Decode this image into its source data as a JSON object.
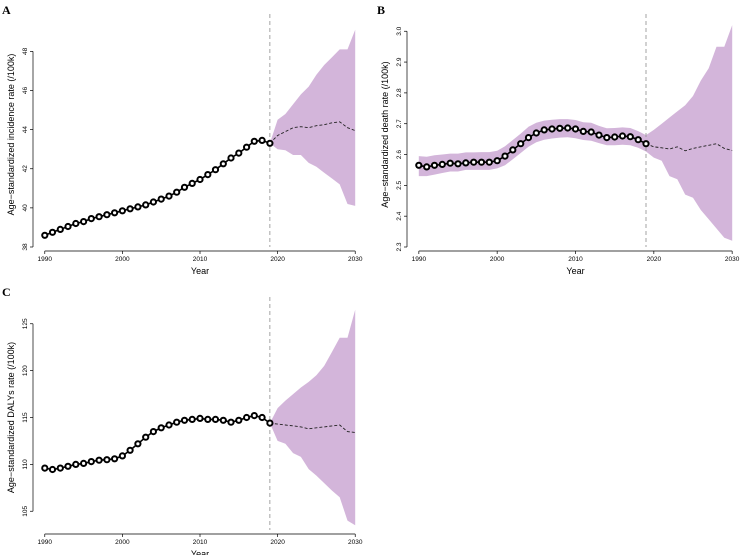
{
  "chart_data": [
    {
      "panel": "A",
      "type": "line",
      "xlabel": "Year",
      "ylabel": "Age−standardized incidence rate (/100k)",
      "xlim": [
        1989,
        2031
      ],
      "ylim": [
        38,
        49.5
      ],
      "xticks": [
        1990,
        2000,
        2010,
        2020,
        2030
      ],
      "yticks": [
        38,
        40,
        42,
        44,
        46,
        48
      ],
      "forecast_start": 2019,
      "observed": {
        "x": [
          1990,
          1991,
          1992,
          1993,
          1994,
          1995,
          1996,
          1997,
          1998,
          1999,
          2000,
          2001,
          2002,
          2003,
          2004,
          2005,
          2006,
          2007,
          2008,
          2009,
          2010,
          2011,
          2012,
          2013,
          2014,
          2015,
          2016,
          2017,
          2018,
          2019
        ],
        "y": [
          38.6,
          38.75,
          38.9,
          39.05,
          39.2,
          39.3,
          39.45,
          39.55,
          39.65,
          39.75,
          39.85,
          39.95,
          40.05,
          40.15,
          40.3,
          40.45,
          40.6,
          40.8,
          41.05,
          41.25,
          41.45,
          41.7,
          41.95,
          42.25,
          42.55,
          42.8,
          43.1,
          43.4,
          43.45,
          43.3
        ]
      },
      "forecast": {
        "x": [
          2019,
          2020,
          2021,
          2022,
          2023,
          2024,
          2025,
          2026,
          2027,
          2028,
          2029,
          2030
        ],
        "mean": [
          43.3,
          43.7,
          43.9,
          44.1,
          44.15,
          44.1,
          44.2,
          44.25,
          44.35,
          44.4,
          44.1,
          43.95
        ],
        "lower": [
          43.3,
          43.0,
          42.95,
          42.7,
          42.7,
          42.3,
          42.1,
          41.8,
          41.5,
          41.2,
          40.2,
          40.1
        ],
        "upper": [
          43.3,
          44.5,
          44.8,
          45.3,
          45.8,
          46.2,
          46.8,
          47.3,
          47.7,
          48.1,
          48.1,
          49.1
        ]
      }
    },
    {
      "panel": "B",
      "type": "line",
      "xlabel": "Year",
      "ylabel": "Age−standardized death rate (/100k)",
      "xlim": [
        1989,
        2031
      ],
      "ylim": [
        2.3,
        3.03
      ],
      "xticks": [
        1990,
        2000,
        2010,
        2020,
        2030
      ],
      "yticks": [
        2.3,
        2.4,
        2.5,
        2.6,
        2.7,
        2.8,
        2.9,
        3.0
      ],
      "ytick_labels": [
        "2.3",
        "2.4",
        "2.5",
        "2.6",
        "2.7",
        "2.8",
        "2.9",
        "3.0"
      ],
      "forecast_start": 2019,
      "observed": {
        "x": [
          1990,
          1991,
          1992,
          1993,
          1994,
          1995,
          1996,
          1997,
          1998,
          1999,
          2000,
          2001,
          2002,
          2003,
          2004,
          2005,
          2006,
          2007,
          2008,
          2009,
          2010,
          2011,
          2012,
          2013,
          2014,
          2015,
          2016,
          2017,
          2018,
          2019
        ],
        "y": [
          2.565,
          2.56,
          2.565,
          2.568,
          2.572,
          2.57,
          2.573,
          2.575,
          2.575,
          2.575,
          2.58,
          2.595,
          2.615,
          2.635,
          2.655,
          2.67,
          2.68,
          2.683,
          2.685,
          2.686,
          2.683,
          2.675,
          2.673,
          2.663,
          2.655,
          2.657,
          2.66,
          2.658,
          2.648,
          2.635
        ]
      },
      "lower": [
        2.53,
        2.53,
        2.535,
        2.54,
        2.545,
        2.545,
        2.55,
        2.55,
        2.55,
        2.55,
        2.555,
        2.565,
        2.585,
        2.605,
        2.625,
        2.64,
        2.648,
        2.652,
        2.655,
        2.656,
        2.653,
        2.647,
        2.645,
        2.637,
        2.63,
        2.63,
        2.632,
        2.63,
        2.622,
        2.61
      ],
      "upper": [
        2.595,
        2.593,
        2.598,
        2.6,
        2.603,
        2.603,
        2.607,
        2.607,
        2.608,
        2.608,
        2.612,
        2.627,
        2.647,
        2.668,
        2.69,
        2.703,
        2.71,
        2.713,
        2.715,
        2.715,
        2.712,
        2.705,
        2.703,
        2.693,
        2.685,
        2.686,
        2.688,
        2.686,
        2.676,
        2.663
      ],
      "forecast": {
        "x": [
          2019,
          2020,
          2021,
          2022,
          2023,
          2024,
          2025,
          2026,
          2027,
          2028,
          2029,
          2030
        ],
        "mean": [
          2.635,
          2.625,
          2.622,
          2.618,
          2.625,
          2.612,
          2.62,
          2.625,
          2.63,
          2.635,
          2.62,
          2.613
        ],
        "lower": [
          2.61,
          2.59,
          2.58,
          2.53,
          2.52,
          2.47,
          2.46,
          2.42,
          2.39,
          2.36,
          2.33,
          2.32
        ],
        "upper": [
          2.663,
          2.68,
          2.7,
          2.72,
          2.74,
          2.76,
          2.79,
          2.84,
          2.88,
          2.95,
          2.95,
          3.02
        ]
      }
    },
    {
      "panel": "C",
      "type": "line",
      "xlabel": "Year",
      "ylabel": "Age−standardized DALYs rate (/100k)",
      "xlim": [
        1989,
        2031
      ],
      "ylim": [
        103,
        127
      ],
      "xticks": [
        1990,
        2000,
        2010,
        2020,
        2030
      ],
      "yticks": [
        105,
        110,
        115,
        120,
        125
      ],
      "forecast_start": 2019,
      "observed": {
        "x": [
          1990,
          1991,
          1992,
          1993,
          1994,
          1995,
          1996,
          1997,
          1998,
          1999,
          2000,
          2001,
          2002,
          2003,
          2004,
          2005,
          2006,
          2007,
          2008,
          2009,
          2010,
          2011,
          2012,
          2013,
          2014,
          2015,
          2016,
          2017,
          2018,
          2019
        ],
        "y": [
          109.6,
          109.45,
          109.6,
          109.8,
          110.0,
          110.1,
          110.3,
          110.45,
          110.5,
          110.6,
          110.9,
          111.5,
          112.2,
          112.9,
          113.5,
          113.9,
          114.2,
          114.5,
          114.7,
          114.8,
          114.9,
          114.8,
          114.8,
          114.7,
          114.5,
          114.7,
          115.0,
          115.2,
          115.0,
          114.4
        ]
      },
      "forecast": {
        "x": [
          2019,
          2020,
          2021,
          2022,
          2023,
          2024,
          2025,
          2026,
          2027,
          2028,
          2029,
          2030
        ],
        "mean": [
          114.4,
          114.3,
          114.2,
          114.1,
          114.0,
          113.8,
          113.9,
          114.0,
          114.1,
          114.2,
          113.5,
          113.4
        ],
        "lower": [
          114.4,
          112.5,
          112.2,
          111.2,
          110.8,
          109.5,
          108.8,
          108.0,
          107.2,
          106.5,
          104.0,
          103.5
        ],
        "upper": [
          114.4,
          116.0,
          116.8,
          117.5,
          118.2,
          118.8,
          119.5,
          120.5,
          122.0,
          123.5,
          123.5,
          126.5
        ]
      }
    }
  ]
}
